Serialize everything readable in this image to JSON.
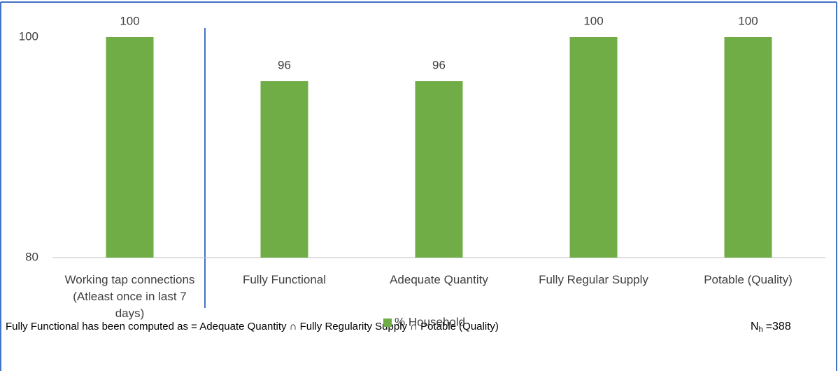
{
  "chart_data": {
    "type": "bar",
    "categories": [
      "Working tap connections (Atleast once in last 7 days)",
      "Fully Functional",
      "Adequate Quantity",
      "Fully Regular Supply",
      "Potable (Quality)"
    ],
    "series": [
      {
        "name": "% Household",
        "color": "#70ad47",
        "values": [
          100,
          96,
          96,
          100,
          100
        ]
      }
    ],
    "ylim": [
      80,
      100
    ],
    "yticks": [
      80,
      100
    ],
    "grid": false,
    "legend": "bottom",
    "footnote": "Fully Functional has been computed as = Adequate Quantity ∩ Fully Regularity Supply ∩ Potable (Quality)",
    "sample": {
      "symbol": "N",
      "subscript": "h",
      "value": "=388"
    }
  }
}
